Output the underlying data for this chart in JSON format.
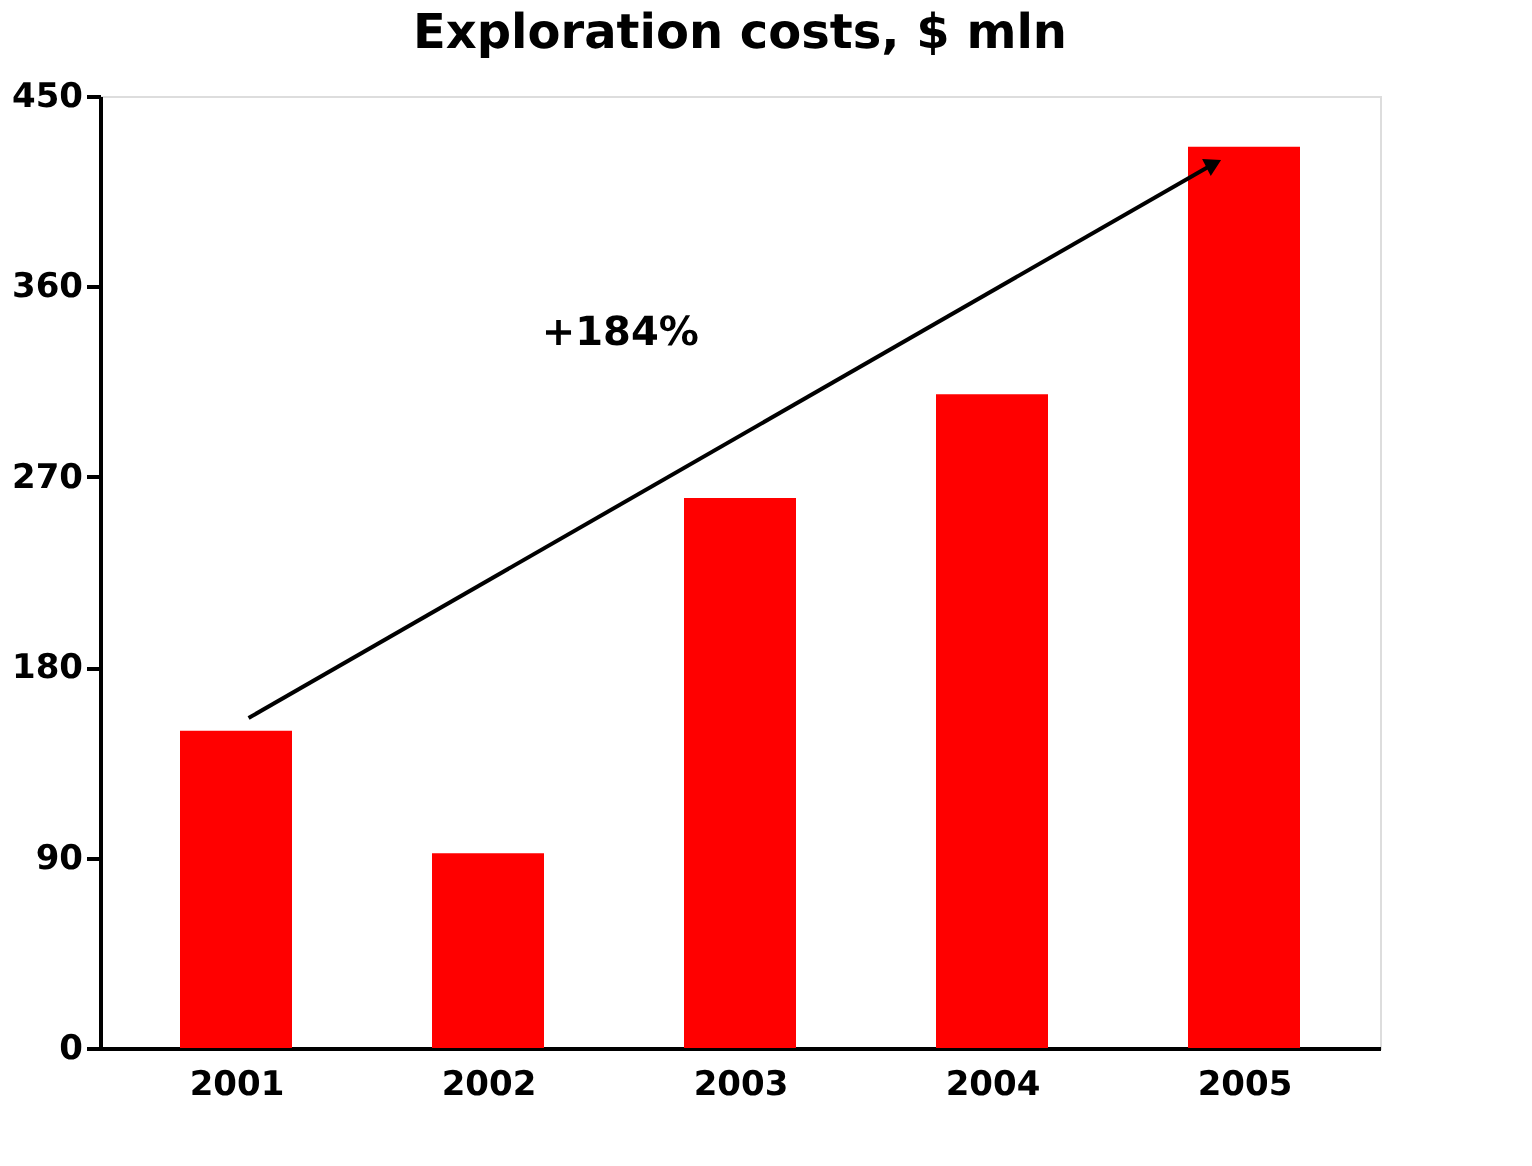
{
  "chart_data": {
    "type": "bar",
    "title": "Exploration costs, $ mln",
    "categories": [
      "2001",
      "2002",
      "2003",
      "2004",
      "2005"
    ],
    "values": [
      150,
      92,
      260,
      309,
      426
    ],
    "color": "#ff0000",
    "ylim": [
      0,
      450
    ],
    "yticks": [
      0,
      90,
      180,
      270,
      360,
      450
    ],
    "grid": false,
    "annotations": [
      "+184%"
    ]
  }
}
